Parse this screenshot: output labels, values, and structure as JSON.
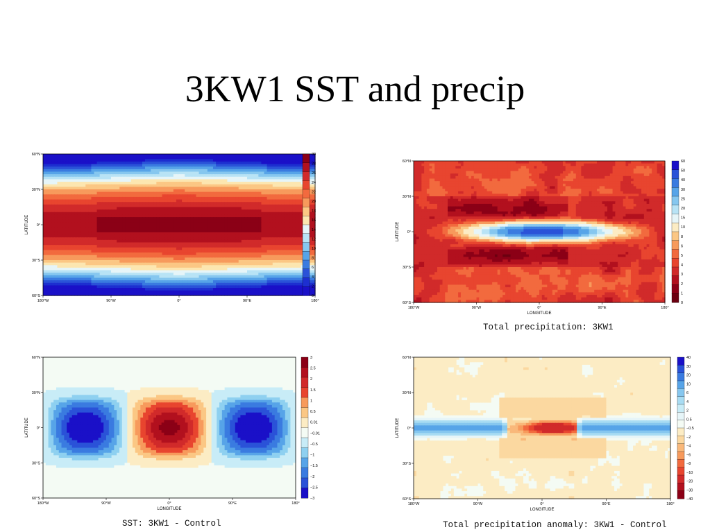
{
  "slide": {
    "title": "3KW1 SST and precip"
  },
  "panels": [
    {
      "id": "sst",
      "caption": ""
    },
    {
      "id": "precip",
      "caption": "Total precipitation: 3KW1"
    },
    {
      "id": "sst_anom",
      "caption": "SST: 3KW1 - Control"
    },
    {
      "id": "precip_anom",
      "caption": "Total precipitation anomaly: 3KW1 - Control"
    }
  ],
  "chart_data": [
    {
      "type": "heatmap",
      "xlabel": "",
      "ylabel": "LATITUDE",
      "xticks": [
        "180°W",
        "90°W",
        "0°",
        "90°E",
        "180°"
      ],
      "yticks": [
        "60°N",
        "30°N",
        "0°",
        "30°S",
        "60°S"
      ],
      "xlim": [
        -180,
        180
      ],
      "ylim": [
        -60,
        60
      ],
      "colorbar": [
        "30",
        "28",
        "26",
        "24",
        "22",
        "20",
        "18",
        "16",
        "14",
        "12",
        "10",
        "8",
        "6",
        "4",
        "2",
        "0"
      ],
      "colors": [
        "#8b0016",
        "#b2101e",
        "#d12a2a",
        "#e8452f",
        "#f26a3e",
        "#f79a5c",
        "#fbc784",
        "#fce6b0",
        "#e6f5f8",
        "#b8e3f5",
        "#86c7ef",
        "#57a4e8",
        "#3a7be0",
        "#2a52d8",
        "#1d2fd0",
        "#1a10c8"
      ]
    },
    {
      "type": "heatmap",
      "title": "Total precipitation: 3KW1",
      "xlabel": "LONGITUDE",
      "ylabel": "LATITUDE",
      "xticks": [
        "180°W",
        "90°W",
        "0°",
        "90°E",
        "180°"
      ],
      "yticks": [
        "60°N",
        "30°N",
        "0°",
        "30°S",
        "60°S"
      ],
      "xlim": [
        -180,
        180
      ],
      "ylim": [
        -60,
        60
      ],
      "colorbar": [
        "60",
        "50",
        "40",
        "30",
        "25",
        "20",
        "15",
        "10",
        "8",
        "6",
        "5",
        "4",
        "3",
        "2",
        "1",
        "0"
      ],
      "colors": [
        "#1a10c8",
        "#2a52d8",
        "#3a7be0",
        "#57a4e8",
        "#86c7ef",
        "#b8e3f5",
        "#e6f5f8",
        "#fcecc4",
        "#fbc784",
        "#f79a5c",
        "#f26a3e",
        "#e8452f",
        "#d12a2a",
        "#b2101e",
        "#8b0016",
        "#6b0010"
      ]
    },
    {
      "type": "heatmap",
      "title": "SST: 3KW1 - Control",
      "xlabel": "LONGITUDE",
      "ylabel": "LATITUDE",
      "xticks": [
        "180°W",
        "90°W",
        "0°",
        "90°E",
        "180°"
      ],
      "yticks": [
        "60°N",
        "30°N",
        "0°",
        "30°S",
        "60°S"
      ],
      "xlim": [
        -180,
        180
      ],
      "ylim": [
        -60,
        60
      ],
      "colorbar": [
        "3",
        "2.5",
        "2",
        "1.5",
        "1",
        "0.5",
        "0.01",
        "−0.01",
        "−0.5",
        "−1",
        "−1.5",
        "−2",
        "−2.5",
        "−3"
      ],
      "colors": [
        "#8b0016",
        "#b2101e",
        "#d12a2a",
        "#e8452f",
        "#f79a5c",
        "#fbc784",
        "#fcecc4",
        "#f4fbf4",
        "#c8ecf7",
        "#8ed0f0",
        "#57a4e8",
        "#3a7be0",
        "#2a52d8",
        "#1a10c8"
      ]
    },
    {
      "type": "heatmap",
      "title": "Total precipitation anomaly: 3KW1 - Control",
      "xlabel": "LONGITUDE",
      "ylabel": "LATITUDE",
      "xticks": [
        "180°W",
        "90°W",
        "0°",
        "90°E",
        "180°"
      ],
      "yticks": [
        "60°N",
        "30°N",
        "0°",
        "30°S",
        "60°S"
      ],
      "xlim": [
        -180,
        180
      ],
      "ylim": [
        -60,
        60
      ],
      "colorbar": [
        "40",
        "30",
        "20",
        "10",
        "6",
        "4",
        "2",
        "0.5",
        "−0.5",
        "−2",
        "−4",
        "−6",
        "−8",
        "−10",
        "−20",
        "−30",
        "−40"
      ],
      "colors": [
        "#1a10c8",
        "#2a52d8",
        "#3a7be0",
        "#57a4e8",
        "#86c7ef",
        "#a8dcf3",
        "#c8ecf7",
        "#e6f5f8",
        "#f4fbf4",
        "#fcecc4",
        "#fbd8a0",
        "#f9b87a",
        "#f79a5c",
        "#f26a3e",
        "#e8452f",
        "#d12a2a",
        "#b2101e",
        "#8b0016"
      ]
    }
  ]
}
